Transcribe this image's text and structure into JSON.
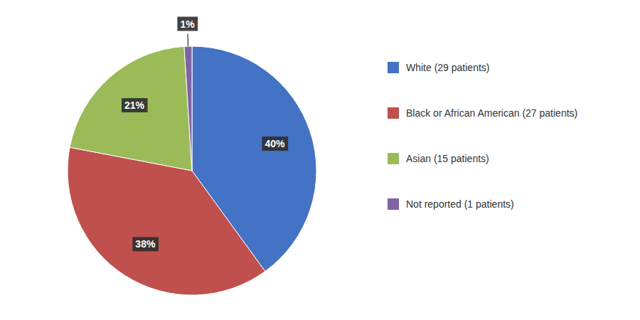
{
  "chart_data": {
    "type": "pie",
    "categories": [
      "White (29 patients)",
      "Black or African American (27 patients)",
      "Asian (15 patients)",
      "Not reported (1 patients)"
    ],
    "values": [
      40,
      38,
      21,
      1
    ],
    "value_labels": [
      "40%",
      "38%",
      "21%",
      "1%"
    ],
    "colors": [
      "#4472C4",
      "#C0504D",
      "#9BBB59",
      "#8064A2"
    ],
    "data_labels": true,
    "legend": "right"
  }
}
